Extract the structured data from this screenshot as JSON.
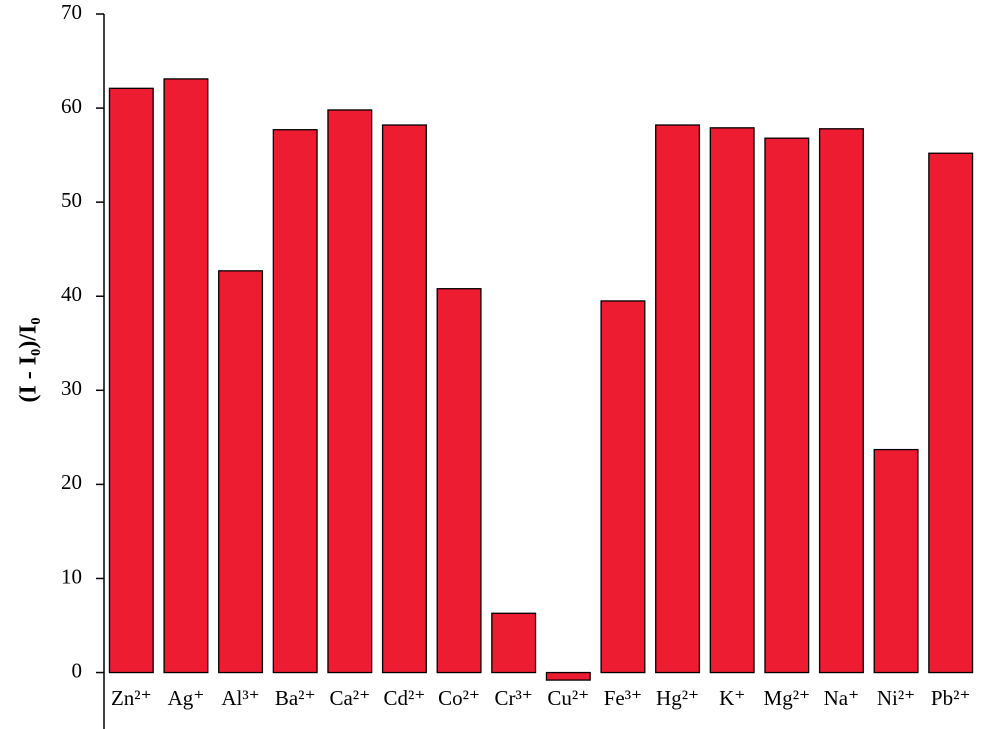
{
  "chart_data": {
    "type": "bar",
    "y_label": "(I - I₀)/I₀",
    "categories": [
      "Zn²⁺",
      "Ag⁺",
      "Al³⁺",
      "Ba²⁺",
      "Ca²⁺",
      "Cd²⁺",
      "Co²⁺",
      "Cr³⁺",
      "Cu²⁺",
      "Fe³⁺",
      "Hg²⁺",
      "K⁺",
      "Mg²⁺",
      "Na⁺",
      "Ni²⁺",
      "Pb²⁺"
    ],
    "values": [
      62.1,
      63.1,
      42.7,
      57.7,
      59.8,
      58.2,
      40.8,
      6.3,
      -0.8,
      39.5,
      58.2,
      57.9,
      56.8,
      57.8,
      23.7,
      55.2
    ],
    "color": "#ee1c30",
    "ylim": [
      -6,
      70
    ],
    "yticks": [
      0,
      10,
      20,
      30,
      40,
      50,
      60,
      70
    ]
  }
}
